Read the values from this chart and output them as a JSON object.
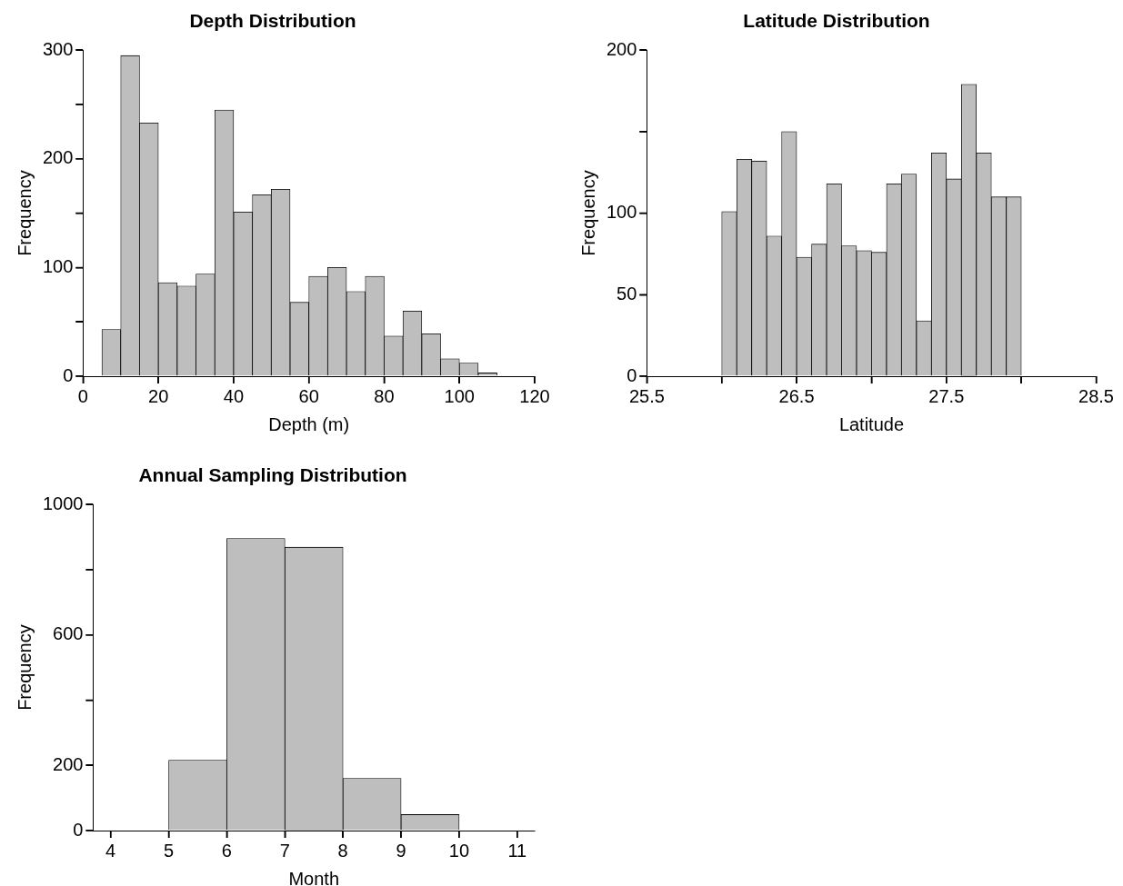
{
  "chart_data": [
    {
      "type": "histogram",
      "title": "Depth Distribution",
      "xlabel": "Depth (m)",
      "ylabel": "Frequency",
      "color": "#bebebe",
      "bins": [
        0,
        5,
        10,
        15,
        20,
        25,
        30,
        35,
        40,
        45,
        50,
        55,
        60,
        65,
        70,
        75,
        80,
        85,
        90,
        95,
        100,
        105,
        110
      ],
      "values": [
        null,
        43,
        295,
        233,
        86,
        83,
        94,
        245,
        151,
        167,
        172,
        68,
        92,
        100,
        78,
        92,
        37,
        60,
        39,
        16,
        12,
        3
      ],
      "xlim": [
        0,
        120
      ],
      "xticks": [
        0,
        20,
        40,
        60,
        80,
        100,
        120
      ],
      "ylim": [
        0,
        300
      ],
      "yticks": [
        0,
        {
          "value": 50,
          "label": null
        },
        100,
        {
          "value": 150,
          "label": null
        },
        200,
        {
          "value": 250,
          "label": null
        },
        300
      ]
    },
    {
      "type": "histogram",
      "title": "Latitude Distribution",
      "xlabel": "Latitude",
      "ylabel": "Frequency",
      "color": "#bebebe",
      "bins": [
        26.0,
        26.1,
        26.2,
        26.3,
        26.4,
        26.5,
        26.6,
        26.7,
        26.8,
        26.9,
        27.0,
        27.1,
        27.2,
        27.3,
        27.4,
        27.5,
        27.6,
        27.7,
        27.8,
        27.9,
        28.0
      ],
      "values": [
        101,
        133,
        132,
        86,
        150,
        73,
        81,
        118,
        80,
        77,
        76,
        118,
        124,
        34,
        137,
        121,
        179,
        137,
        110,
        110
      ],
      "xlim": [
        25.5,
        28.5
      ],
      "xticks": [
        25.5,
        {
          "value": 26,
          "label": null
        },
        26.5,
        {
          "value": 27,
          "label": null
        },
        27.5,
        {
          "value": 28,
          "label": null
        },
        28.5
      ],
      "ylim": [
        0,
        200
      ],
      "yticks": [
        0,
        50,
        100,
        {
          "value": 150,
          "label": null
        },
        200
      ]
    },
    {
      "type": "histogram",
      "title": "Annual Sampling Distribution",
      "xlabel": "Month",
      "ylabel": "Frequency",
      "color": "#bebebe",
      "bins": [
        4,
        5,
        6,
        7,
        8,
        9,
        10,
        11
      ],
      "values": [
        0,
        216,
        896,
        869,
        160,
        49,
        0
      ],
      "xlim": [
        3.7,
        11.3
      ],
      "xticks": [
        4,
        5,
        6,
        7,
        8,
        9,
        10,
        11
      ],
      "ylim": [
        0,
        1000
      ],
      "yticks": [
        0,
        200,
        {
          "value": 400,
          "label": null
        },
        600,
        {
          "value": 800,
          "label": null
        },
        1000
      ]
    }
  ]
}
